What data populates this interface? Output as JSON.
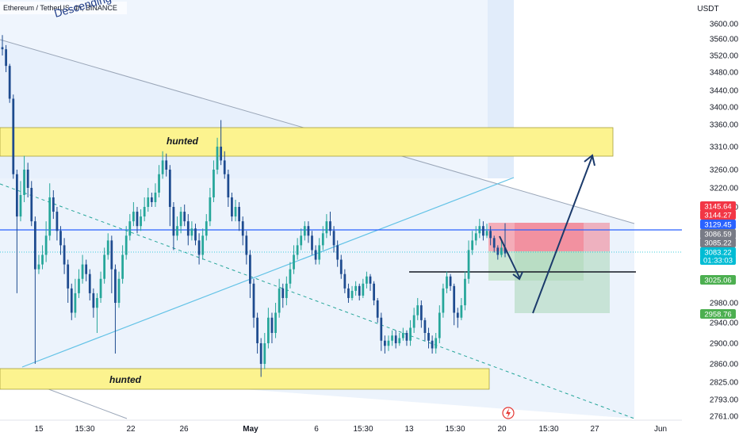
{
  "header": {
    "symbol_title": "Ethereum / TetherUS, 4h, BINANCE",
    "channel_label": "Descending channel",
    "currency": "USDT"
  },
  "colors": {
    "bull": "#26a69a",
    "bear": "#1e4b8f",
    "zone_fill": "#fcf38f",
    "stop_fill": "#f28b9a",
    "target_fill": "#b5dbc0",
    "channel_fill": "#e8f0fb",
    "level_line": "#2962ff",
    "trend_line": "#62c2e6"
  },
  "annotations": {
    "zone_top_label": "hunted",
    "zone_bottom_label": "hunted"
  },
  "chart_data": {
    "type": "candlestick",
    "symbol": "ETH/USDT",
    "timeframe": "4h",
    "y_axis_ticks": [
      3600,
      3560,
      3520,
      3480,
      3440,
      3400,
      3360,
      3310,
      3260,
      3220,
      3180,
      2980,
      2940,
      2900,
      2860,
      2825,
      2793,
      2761
    ],
    "x_axis_ticks": [
      "15",
      "15:30",
      "22",
      "26",
      "May",
      "6",
      "15:30",
      "13",
      "15:30",
      "20",
      "15:30",
      "27",
      "Jun"
    ],
    "ylim": [
      2745,
      3625
    ],
    "price_badges": [
      {
        "value": "3145.64",
        "color": "#f23645"
      },
      {
        "value": "3144.27",
        "color": "#f23645"
      },
      {
        "value": "3129.45",
        "color": "#2962ff"
      },
      {
        "value": "3086.59",
        "color": "#787b86"
      },
      {
        "value": "3085.22",
        "color": "#787b86"
      },
      {
        "value": "3083.22",
        "color": "#00bcd4"
      },
      {
        "value": "01:33:03",
        "color": "#00bcd4"
      },
      {
        "value": "3025.06",
        "color": "#4caf50"
      },
      {
        "value": "2958.76",
        "color": "#4caf50"
      }
    ],
    "zones": [
      {
        "name": "hunted",
        "from": 3300,
        "to": 3350
      },
      {
        "name": "hunted",
        "from": 2826,
        "to": 2853
      }
    ],
    "level": 3129.45,
    "candles": [
      [
        3540,
        3535,
        3570,
        3520
      ],
      [
        3535,
        3495,
        3545,
        3480
      ],
      [
        3495,
        3420,
        3500,
        3410
      ],
      [
        3420,
        3250,
        3430,
        3240
      ],
      [
        3250,
        3160,
        3260,
        3000
      ],
      [
        3160,
        3205,
        3235,
        3150
      ],
      [
        3205,
        3260,
        3290,
        3190
      ],
      [
        3260,
        3220,
        3275,
        3200
      ],
      [
        3220,
        3150,
        3235,
        3140
      ],
      [
        3150,
        3050,
        3160,
        2860
      ],
      [
        3050,
        3060,
        3080,
        3040
      ],
      [
        3060,
        3080,
        3100,
        3050
      ],
      [
        3080,
        3120,
        3150,
        3065
      ],
      [
        3120,
        3200,
        3230,
        3110
      ],
      [
        3200,
        3170,
        3215,
        3155
      ],
      [
        3170,
        3130,
        3180,
        3110
      ],
      [
        3130,
        3100,
        3140,
        3080
      ],
      [
        3100,
        3060,
        3115,
        3040
      ],
      [
        3060,
        3010,
        3070,
        2980
      ],
      [
        3010,
        2960,
        3020,
        2945
      ],
      [
        2960,
        3000,
        3030,
        2950
      ],
      [
        3000,
        3030,
        3050,
        2990
      ],
      [
        3030,
        3060,
        3080,
        3020
      ],
      [
        3060,
        3040,
        3070,
        3025
      ],
      [
        3040,
        3000,
        3050,
        2985
      ],
      [
        3000,
        2970,
        3010,
        2950
      ],
      [
        2970,
        2990,
        3000,
        2920
      ],
      [
        2990,
        3030,
        3045,
        2980
      ],
      [
        3030,
        3080,
        3095,
        3020
      ],
      [
        3080,
        3110,
        3125,
        3070
      ],
      [
        3110,
        3050,
        3120,
        3000
      ],
      [
        3050,
        2980,
        3060,
        2880
      ],
      [
        2980,
        3030,
        3045,
        2970
      ],
      [
        3030,
        3080,
        3100,
        3020
      ],
      [
        3080,
        3120,
        3140,
        3070
      ],
      [
        3120,
        3150,
        3165,
        3110
      ],
      [
        3150,
        3170,
        3190,
        3140
      ],
      [
        3170,
        3140,
        3180,
        3125
      ],
      [
        3140,
        3160,
        3175,
        3130
      ],
      [
        3160,
        3180,
        3200,
        3150
      ],
      [
        3180,
        3200,
        3220,
        3170
      ],
      [
        3200,
        3190,
        3210,
        3180
      ],
      [
        3190,
        3210,
        3230,
        3180
      ],
      [
        3210,
        3250,
        3270,
        3200
      ],
      [
        3250,
        3280,
        3300,
        3240
      ],
      [
        3280,
        3260,
        3295,
        3245
      ],
      [
        3260,
        3180,
        3270,
        3140
      ],
      [
        3180,
        3120,
        3190,
        3090
      ],
      [
        3120,
        3140,
        3160,
        3110
      ],
      [
        3140,
        3170,
        3180,
        3125
      ],
      [
        3170,
        3150,
        3185,
        3140
      ],
      [
        3150,
        3120,
        3165,
        3100
      ],
      [
        3120,
        3135,
        3150,
        3110
      ],
      [
        3135,
        3110,
        3145,
        3100
      ],
      [
        3110,
        3080,
        3125,
        3060
      ],
      [
        3080,
        3120,
        3135,
        3070
      ],
      [
        3120,
        3150,
        3165,
        3110
      ],
      [
        3150,
        3200,
        3220,
        3140
      ],
      [
        3200,
        3260,
        3280,
        3190
      ],
      [
        3260,
        3310,
        3330,
        3250
      ],
      [
        3310,
        3280,
        3370,
        3270
      ],
      [
        3280,
        3250,
        3300,
        3240
      ],
      [
        3250,
        3200,
        3260,
        3180
      ],
      [
        3200,
        3160,
        3210,
        3150
      ],
      [
        3160,
        3180,
        3195,
        3150
      ],
      [
        3180,
        3150,
        3190,
        3130
      ],
      [
        3150,
        3120,
        3160,
        3100
      ],
      [
        3120,
        3080,
        3130,
        3060
      ],
      [
        3080,
        3020,
        3090,
        2990
      ],
      [
        3020,
        2950,
        3030,
        2930
      ],
      [
        2950,
        2900,
        2960,
        2880
      ],
      [
        2900,
        2860,
        2910,
        2835
      ],
      [
        2860,
        2900,
        2920,
        2850
      ],
      [
        2900,
        2950,
        2970,
        2890
      ],
      [
        2950,
        2920,
        2960,
        2900
      ],
      [
        2920,
        2960,
        2980,
        2910
      ],
      [
        2960,
        3010,
        3030,
        2950
      ],
      [
        3010,
        2990,
        3020,
        2970
      ],
      [
        2990,
        3020,
        3035,
        2975
      ],
      [
        3020,
        3050,
        3065,
        3010
      ],
      [
        3050,
        3080,
        3100,
        3040
      ],
      [
        3080,
        3100,
        3115,
        3070
      ],
      [
        3100,
        3120,
        3135,
        3090
      ],
      [
        3120,
        3140,
        3150,
        3110
      ],
      [
        3140,
        3120,
        3150,
        3105
      ],
      [
        3120,
        3090,
        3130,
        3080
      ],
      [
        3090,
        3070,
        3100,
        3060
      ],
      [
        3070,
        3100,
        3115,
        3060
      ],
      [
        3100,
        3125,
        3140,
        3090
      ],
      [
        3125,
        3150,
        3165,
        3115
      ],
      [
        3150,
        3130,
        3170,
        3120
      ],
      [
        3130,
        3100,
        3140,
        3085
      ],
      [
        3100,
        3070,
        3110,
        3055
      ],
      [
        3070,
        3040,
        3080,
        3030
      ],
      [
        3040,
        3010,
        3050,
        3000
      ],
      [
        3010,
        2990,
        3020,
        2980
      ],
      [
        2990,
        3005,
        3015,
        2985
      ],
      [
        3005,
        3015,
        3025,
        2995
      ],
      [
        3015,
        2995,
        3020,
        2985
      ],
      [
        2995,
        3020,
        3030,
        2990
      ],
      [
        3020,
        3035,
        3045,
        3010
      ],
      [
        3035,
        3020,
        3040,
        3005
      ],
      [
        3020,
        2985,
        3025,
        2975
      ],
      [
        2985,
        2950,
        2990,
        2940
      ],
      [
        2950,
        2905,
        2960,
        2885
      ],
      [
        2905,
        2895,
        2915,
        2880
      ],
      [
        2895,
        2905,
        2915,
        2885
      ],
      [
        2905,
        2915,
        2925,
        2895
      ],
      [
        2915,
        2900,
        2925,
        2890
      ],
      [
        2900,
        2910,
        2920,
        2895
      ],
      [
        2910,
        2920,
        2930,
        2905
      ],
      [
        2920,
        2905,
        2925,
        2895
      ],
      [
        2905,
        2930,
        2945,
        2895
      ],
      [
        2930,
        2955,
        2970,
        2920
      ],
      [
        2955,
        2975,
        2990,
        2945
      ],
      [
        2975,
        2945,
        2985,
        2930
      ],
      [
        2945,
        2920,
        2950,
        2905
      ],
      [
        2920,
        2905,
        2930,
        2890
      ],
      [
        2905,
        2890,
        2915,
        2880
      ],
      [
        2890,
        2910,
        2920,
        2880
      ],
      [
        2910,
        2960,
        2975,
        2900
      ],
      [
        2960,
        3010,
        3020,
        2950
      ],
      [
        3010,
        3035,
        3045,
        3000
      ],
      [
        3035,
        3015,
        3040,
        3005
      ],
      [
        3015,
        2960,
        3020,
        2935
      ],
      [
        2960,
        2950,
        2970,
        2930
      ],
      [
        2950,
        2975,
        2990,
        2945
      ],
      [
        2975,
        3030,
        3045,
        2965
      ],
      [
        3030,
        3090,
        3110,
        3020
      ],
      [
        3090,
        3110,
        3130,
        3080
      ],
      [
        3110,
        3125,
        3140,
        3100
      ],
      [
        3125,
        3140,
        3155,
        3115
      ],
      [
        3140,
        3120,
        3150,
        3110
      ],
      [
        3120,
        3130,
        3145,
        3115
      ],
      [
        3130,
        3115,
        3140,
        3100
      ],
      [
        3115,
        3095,
        3120,
        3085
      ],
      [
        3095,
        3080,
        3100,
        3070
      ],
      [
        3080,
        3095,
        3110,
        3075
      ],
      [
        3095,
        3083,
        3146,
        3075
      ]
    ]
  }
}
